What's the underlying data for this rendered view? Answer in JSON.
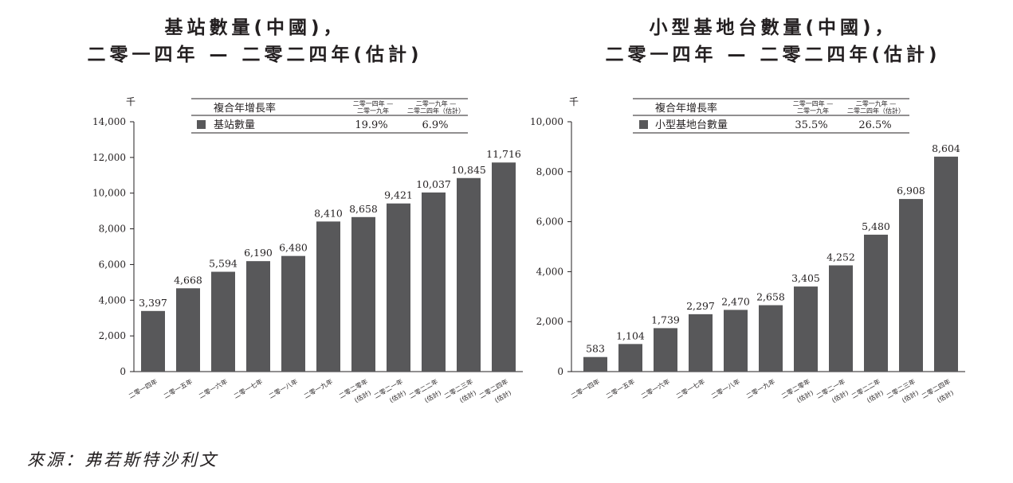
{
  "charts": [
    {
      "title_line1": "基站數量(中國)，",
      "title_line2": "二零一四年 — 二零二四年(估計)",
      "unit_label": "千",
      "legend": {
        "cagr_header": "複合年增長率",
        "period1_line1": "二零一四年 —",
        "period1_line2": "二零一九年",
        "period2_line1": "二零一九年 —",
        "period2_line2": "二零二四年（估計）",
        "series_name": "基站數量",
        "cagr1": "19.9%",
        "cagr2": "6.9%",
        "swatch_color": "#58585a"
      }
    },
    {
      "title_line1": "小型基地台數量(中國)，",
      "title_line2": "二零一四年 — 二零二四年(估計)",
      "unit_label": "千",
      "legend": {
        "cagr_header": "複合年增長率",
        "period1_line1": "二零一四年 —",
        "period1_line2": "二零一九年",
        "period2_line1": "二零一九年 —",
        "period2_line2": "二零二四年（估計）",
        "series_name": "小型基地台數量",
        "cagr1": "35.5%",
        "cagr2": "26.5%",
        "swatch_color": "#58585a"
      }
    }
  ],
  "chart_data": [
    {
      "type": "bar",
      "categories": [
        [
          "二零一四年"
        ],
        [
          "二零一五年"
        ],
        [
          "二零一六年"
        ],
        [
          "二零一七年"
        ],
        [
          "二零一八年"
        ],
        [
          "二零一九年"
        ],
        [
          "二零二零年",
          "(估計)"
        ],
        [
          "二零二一年",
          "(估計)"
        ],
        [
          "二零二二年",
          "(估計)"
        ],
        [
          "二零二三年",
          "(估計)"
        ],
        [
          "二零二四年",
          "(估計)"
        ]
      ],
      "values": [
        3397,
        4668,
        5594,
        6190,
        6480,
        8410,
        8658,
        9421,
        10037,
        10845,
        11716
      ],
      "value_labels": [
        "3,397",
        "4,668",
        "5,594",
        "6,190",
        "6,480",
        "8,410",
        "8,658",
        "9,421",
        "10,037",
        "10,845",
        "11,716"
      ],
      "ylim": [
        0,
        14000
      ],
      "yticks": [
        0,
        2000,
        4000,
        6000,
        8000,
        10000,
        12000,
        14000
      ],
      "ytick_labels": [
        "0",
        "2,000",
        "4,000",
        "6,000",
        "8,000",
        "10,000",
        "12,000",
        "14,000"
      ],
      "bar_color": "#58585a",
      "grid": false
    },
    {
      "type": "bar",
      "categories": [
        [
          "二零一四年"
        ],
        [
          "二零一五年"
        ],
        [
          "二零一六年"
        ],
        [
          "二零一七年"
        ],
        [
          "二零一八年"
        ],
        [
          "二零一九年"
        ],
        [
          "二零二零年",
          "(估計)"
        ],
        [
          "二零二一年",
          "(估計)"
        ],
        [
          "二零二二年",
          "(估計)"
        ],
        [
          "二零二三年",
          "(估計)"
        ],
        [
          "二零二四年",
          "(估計)"
        ]
      ],
      "values": [
        583,
        1104,
        1739,
        2297,
        2470,
        2658,
        3405,
        4252,
        5480,
        6908,
        8604
      ],
      "value_labels": [
        "583",
        "1,104",
        "1,739",
        "2,297",
        "2,470",
        "2,658",
        "3,405",
        "4,252",
        "5,480",
        "6,908",
        "8,604"
      ],
      "ylim": [
        0,
        10000
      ],
      "yticks": [
        0,
        2000,
        4000,
        6000,
        8000,
        10000
      ],
      "ytick_labels": [
        "0",
        "2,000",
        "4,000",
        "6,000",
        "8,000",
        "10,000"
      ],
      "bar_color": "#58585a",
      "grid": false
    }
  ],
  "source": "來源：弗若斯特沙利文"
}
